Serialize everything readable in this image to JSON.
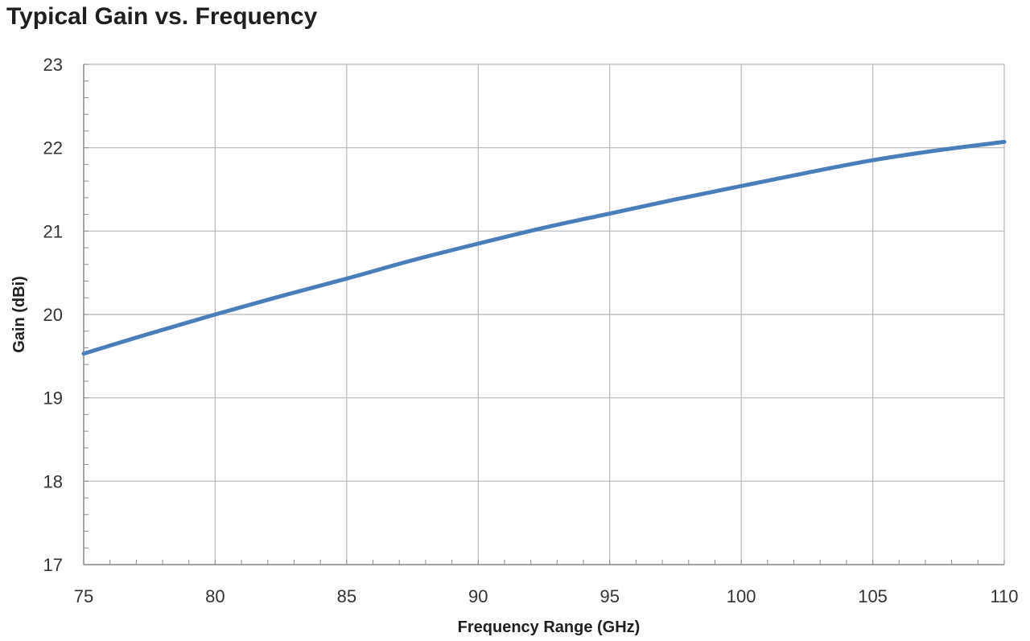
{
  "chart_data": {
    "type": "line",
    "title": "Typical Gain vs. Frequency",
    "xlabel": "Frequency Range (GHz)",
    "ylabel": "Gain (dBi)",
    "xlim": [
      75,
      110
    ],
    "ylim": [
      17,
      23
    ],
    "x_ticks": [
      "75",
      "80",
      "85",
      "90",
      "95",
      "100",
      "105",
      "110"
    ],
    "y_ticks": [
      "17",
      "18",
      "19",
      "20",
      "21",
      "22",
      "23"
    ],
    "grid": true,
    "legend": "none",
    "series": [
      {
        "color": "#4a7ebb",
        "x": [
          75,
          77.5,
          80,
          82.5,
          85,
          87.5,
          90,
          92.5,
          95,
          97.5,
          100,
          102.5,
          105,
          107.5,
          110
        ],
        "y": [
          19.53,
          19.77,
          20.0,
          20.22,
          20.43,
          20.65,
          20.85,
          21.04,
          21.21,
          21.38,
          21.54,
          21.7,
          21.85,
          21.97,
          22.07
        ]
      }
    ]
  },
  "colors": {
    "grid": "#b8b8b8",
    "axis": "#8c8c8c",
    "line": "#4a7ebb"
  }
}
